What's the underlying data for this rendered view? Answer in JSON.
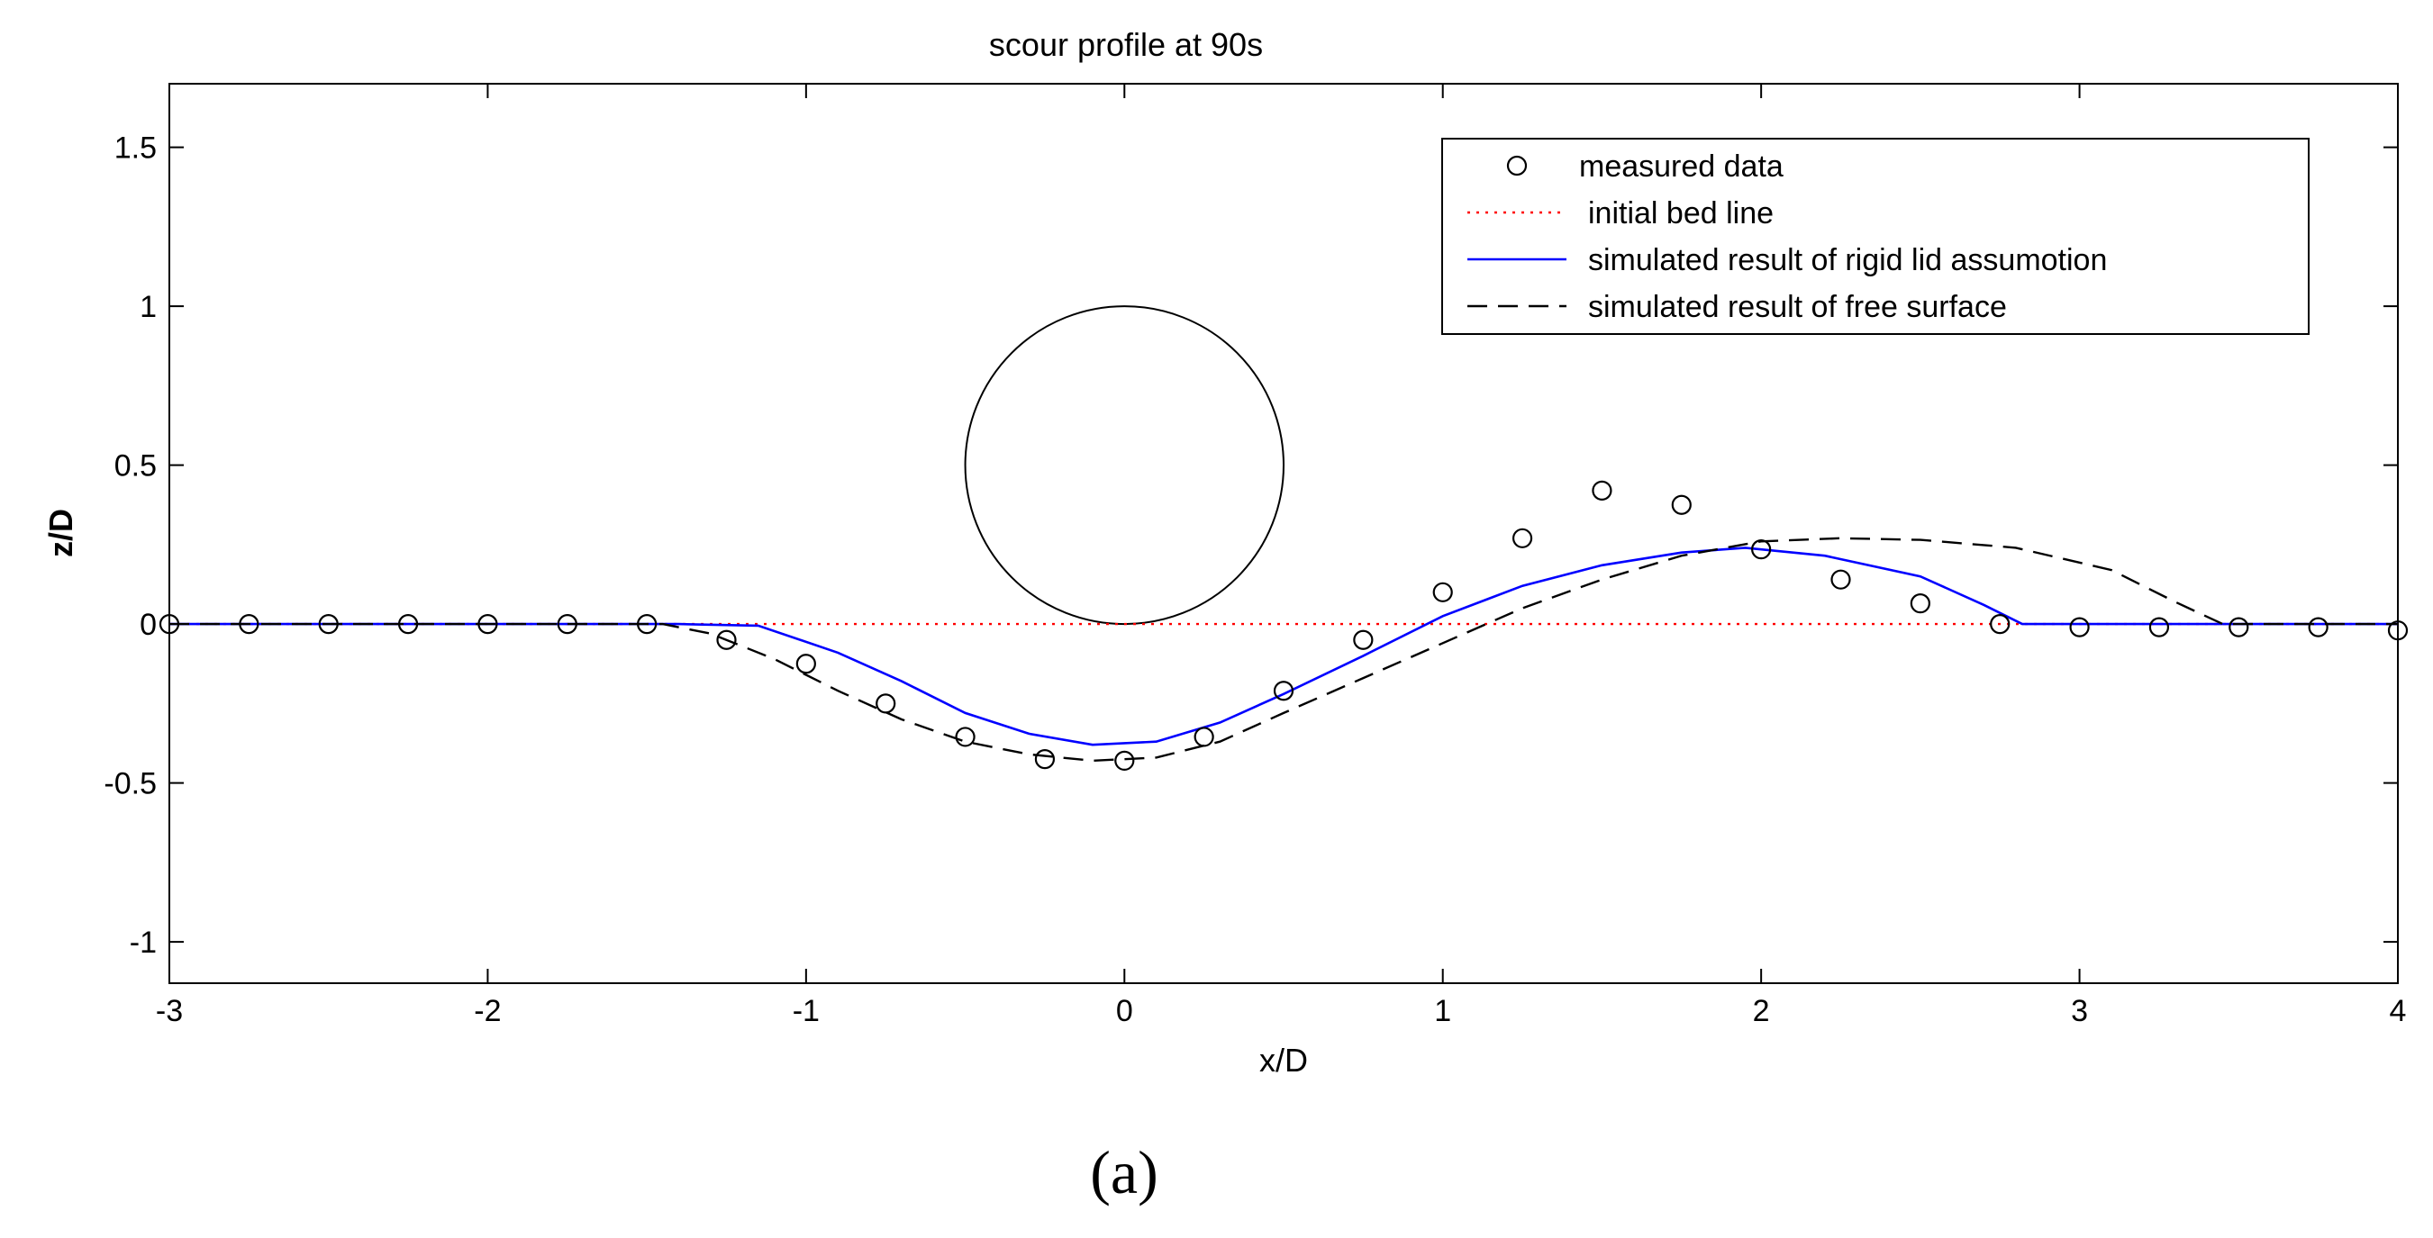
{
  "chart_data": {
    "type": "line",
    "title": "scour profile at 90s",
    "xlabel": "x/D",
    "ylabel": "z/D",
    "xlim": [
      -3,
      4
    ],
    "ylim": [
      -1.13,
      1.7
    ],
    "xticks": [
      -3,
      -2,
      -1,
      0,
      1,
      2,
      3,
      4
    ],
    "xtick_labels": [
      "-3",
      "-2",
      "-1",
      "0",
      "1",
      "2",
      "3",
      "4"
    ],
    "yticks": [
      -1,
      -0.5,
      0,
      0.5,
      1,
      1.5
    ],
    "ytick_labels": [
      "-1",
      "-0.5",
      "0",
      "0.5",
      "1",
      "1.5"
    ],
    "grid": false,
    "legend_position": "top-right",
    "series": [
      {
        "name": "measured data",
        "style": "circle-markers",
        "color": "#000000",
        "x": [
          -3,
          -2.75,
          -2.5,
          -2.25,
          -2,
          -1.75,
          -1.5,
          -1.25,
          -1,
          -0.75,
          -0.5,
          -0.25,
          0,
          0.25,
          0.5,
          0.75,
          1,
          1.25,
          1.5,
          1.75,
          2,
          2.25,
          2.5,
          2.75,
          3,
          3.25,
          3.5,
          3.75,
          4
        ],
        "y": [
          0,
          0,
          0,
          0,
          0,
          0,
          0,
          -0.05,
          -0.125,
          -0.25,
          -0.355,
          -0.425,
          -0.43,
          -0.355,
          -0.21,
          -0.05,
          0.1,
          0.27,
          0.42,
          0.375,
          0.235,
          0.14,
          0.065,
          0,
          -0.01,
          -0.01,
          -0.01,
          -0.01,
          -0.02
        ]
      },
      {
        "name": "initial bed line",
        "style": "dotted",
        "color": "#ff0000",
        "x": [
          -3,
          4
        ],
        "y": [
          0,
          0
        ]
      },
      {
        "name": "simulated result of rigid lid assumotion",
        "style": "solid",
        "color": "#0000ff",
        "x": [
          -3,
          -1.4,
          -1.15,
          -0.9,
          -0.7,
          -0.5,
          -0.3,
          -0.1,
          0.1,
          0.3,
          0.5,
          0.75,
          1,
          1.25,
          1.5,
          1.75,
          1.95,
          2.2,
          2.5,
          2.7,
          2.82,
          3.2,
          4
        ],
        "y": [
          0,
          0,
          -0.005,
          -0.09,
          -0.18,
          -0.28,
          -0.345,
          -0.38,
          -0.37,
          -0.31,
          -0.22,
          -0.1,
          0.025,
          0.12,
          0.185,
          0.225,
          0.24,
          0.215,
          0.15,
          0.06,
          0,
          0,
          0
        ]
      },
      {
        "name": "simulated result of free surface",
        "style": "dashed",
        "color": "#000000",
        "x": [
          -3,
          -1.45,
          -1.3,
          -1.1,
          -0.9,
          -0.7,
          -0.5,
          -0.3,
          -0.1,
          0.1,
          0.3,
          0.5,
          0.75,
          1,
          1.25,
          1.5,
          1.75,
          2,
          2.25,
          2.5,
          2.8,
          3.1,
          3.3,
          3.45,
          4
        ],
        "y": [
          0,
          0,
          -0.03,
          -0.11,
          -0.21,
          -0.3,
          -0.37,
          -0.41,
          -0.43,
          -0.42,
          -0.37,
          -0.28,
          -0.17,
          -0.06,
          0.05,
          0.14,
          0.215,
          0.26,
          0.27,
          0.265,
          0.24,
          0.17,
          0.07,
          0,
          0
        ]
      }
    ],
    "annotations": {
      "circle_center": [
        0,
        0.5
      ],
      "circle_radius": 0.5
    }
  },
  "panel_label": "(a)",
  "colors": {
    "axes": "#000000",
    "bed_line": "#ff0000",
    "rigid_lid": "#0000ff",
    "free_surface": "#000000"
  }
}
